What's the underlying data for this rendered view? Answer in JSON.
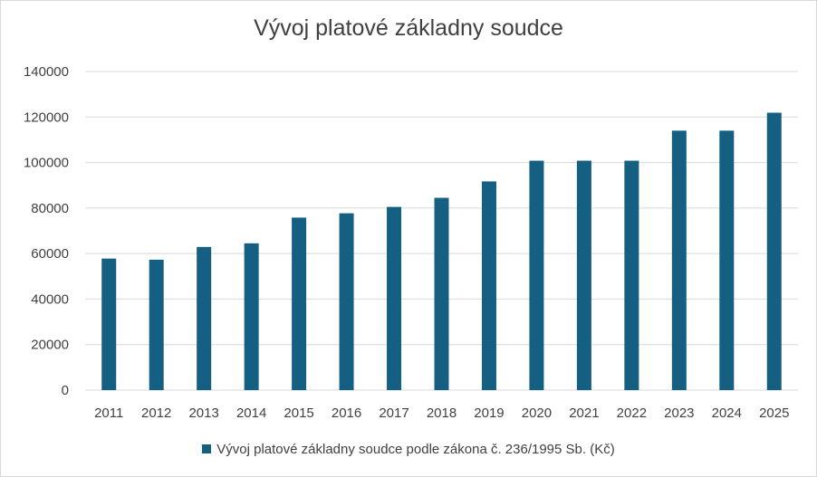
{
  "chart_data": {
    "type": "bar",
    "title": "Vývoj platové základny soudce",
    "categories": [
      "2011",
      "2012",
      "2013",
      "2014",
      "2015",
      "2016",
      "2017",
      "2018",
      "2019",
      "2020",
      "2021",
      "2022",
      "2023",
      "2024",
      "2025"
    ],
    "series": [
      {
        "name": "Vývoj platové základny soudce podle zákona č. 236/1995 Sb. (Kč)",
        "values": [
          57800,
          57300,
          62900,
          64500,
          75800,
          77700,
          80500,
          84500,
          91700,
          100800,
          100800,
          100800,
          114000,
          114000,
          121900
        ]
      }
    ],
    "ylim": [
      0,
      140000
    ],
    "yticks": [
      0,
      20000,
      40000,
      60000,
      80000,
      100000,
      120000,
      140000
    ],
    "grid": true,
    "legend_position": "bottom",
    "bar_color": "#156082",
    "grid_color": "#d9d9d9",
    "text_color": "#404040"
  }
}
